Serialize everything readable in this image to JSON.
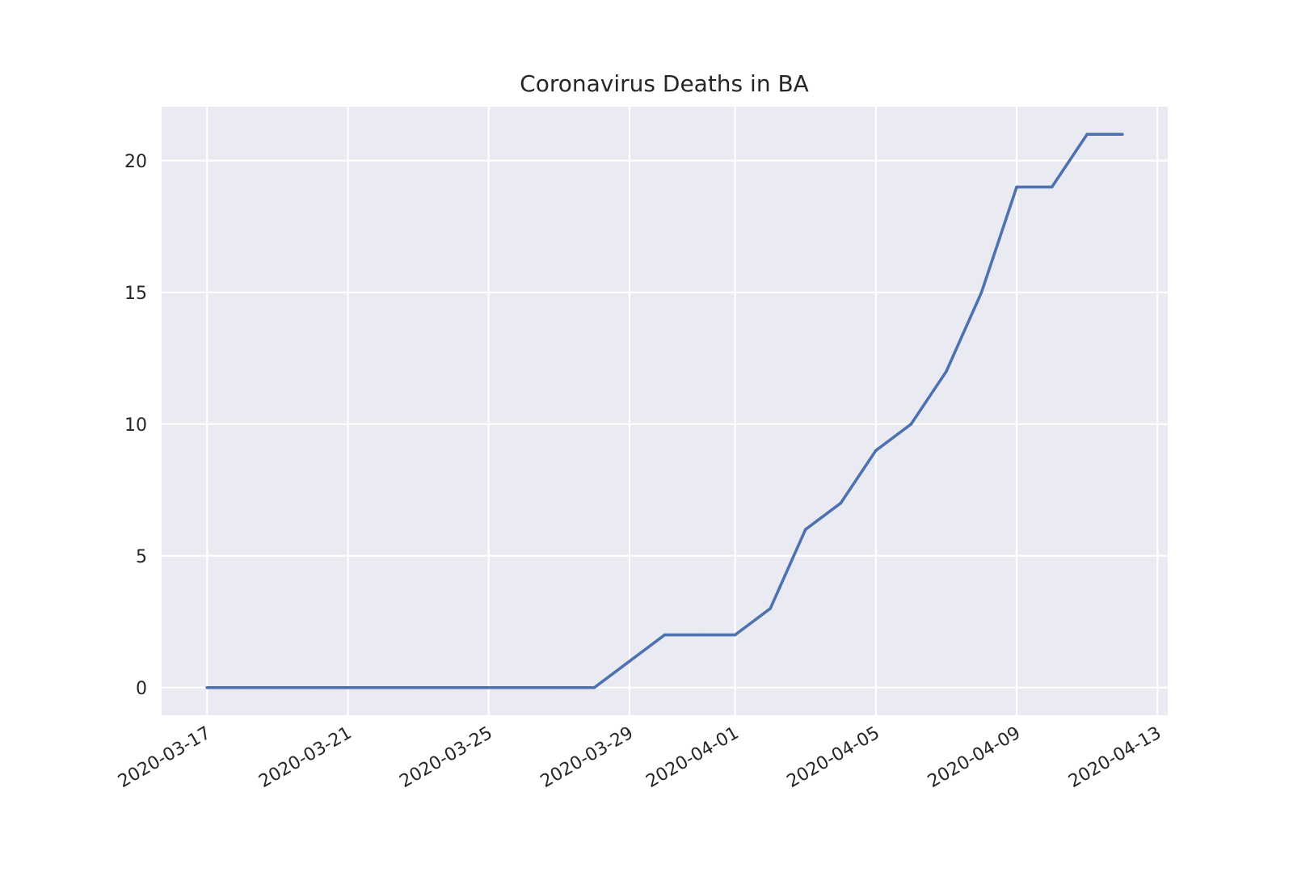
{
  "chart_data": {
    "type": "line",
    "title": "Coronavirus Deaths in BA",
    "xlabel": "",
    "ylabel": "",
    "x_tick_labels": [
      "2020-03-17",
      "2020-03-21",
      "2020-03-25",
      "2020-03-29",
      "2020-04-01",
      "2020-04-05",
      "2020-04-09",
      "2020-04-13"
    ],
    "y_tick_labels": [
      "0",
      "5",
      "10",
      "15",
      "20"
    ],
    "xlim": [
      "2020-03-15T17:00",
      "2020-04-13T07:00"
    ],
    "ylim": [
      -1.05,
      22.05
    ],
    "grid": true,
    "legend": "none",
    "colors": {
      "line": "#4c72b0",
      "plot_background": "#eaeaf2",
      "grid": "#ffffff"
    },
    "series": [
      {
        "x": [
          "2020-03-17",
          "2020-03-18",
          "2020-03-19",
          "2020-03-20",
          "2020-03-21",
          "2020-03-22",
          "2020-03-23",
          "2020-03-24",
          "2020-03-25",
          "2020-03-26",
          "2020-03-27",
          "2020-03-28",
          "2020-03-29",
          "2020-03-30",
          "2020-03-31",
          "2020-04-01",
          "2020-04-02",
          "2020-04-03",
          "2020-04-04",
          "2020-04-05",
          "2020-04-06",
          "2020-04-07",
          "2020-04-08",
          "2020-04-09",
          "2020-04-10",
          "2020-04-11",
          "2020-04-12"
        ],
        "y": [
          0,
          0,
          0,
          0,
          0,
          0,
          0,
          0,
          0,
          0,
          0,
          0,
          1,
          2,
          2,
          2,
          3,
          6,
          7,
          9,
          10,
          12,
          15,
          19,
          19,
          21,
          21
        ]
      }
    ]
  }
}
